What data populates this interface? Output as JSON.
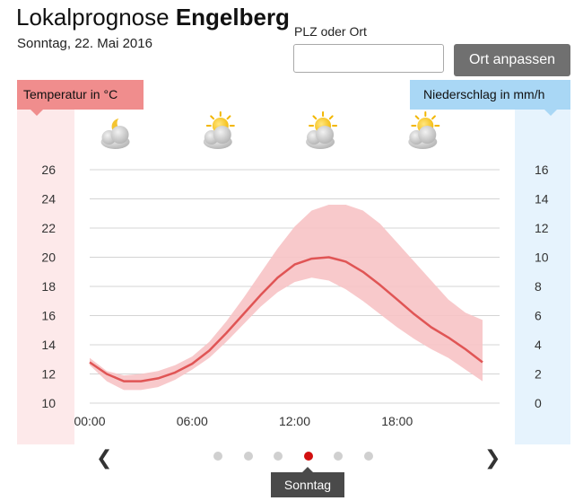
{
  "header": {
    "title_prefix": "Lokalprognose",
    "title_place": "Engelberg",
    "date": "Sonntag, 22. Mai 2016"
  },
  "search": {
    "label": "PLZ oder Ort",
    "value": "",
    "placeholder": "",
    "button_label": "Ort anpassen"
  },
  "weather_icons": [
    "moon-cloud-icon",
    "sun-cloud-icon",
    "sun-cloud-icon",
    "sun-cloud-icon"
  ],
  "colors": {
    "temperature": "#e05555",
    "temperature_band": "#f7c3c5",
    "temperature_column": "#fde9ea",
    "precipitation_column": "#e6f3fd",
    "active_dot": "#d20f0f"
  },
  "chart_data": {
    "type": "line",
    "left_axis_label": "Temperatur in °C",
    "right_axis_label": "Niederschlag in mm/h",
    "x_ticks": [
      "00:00",
      "06:00",
      "12:00",
      "18:00"
    ],
    "y_left_ticks": [
      10,
      12,
      14,
      16,
      18,
      20,
      22,
      24,
      26
    ],
    "y_right_ticks": [
      0,
      2,
      4,
      6,
      8,
      10,
      12,
      14,
      16
    ],
    "ylim_left": [
      10,
      26
    ],
    "ylim_right": [
      0,
      16
    ],
    "grid": true,
    "series": [
      {
        "kind": "line",
        "hours": [
          0,
          1,
          2,
          3,
          4,
          5,
          6,
          7,
          8,
          9,
          10,
          11,
          12,
          13,
          14,
          15,
          16,
          17,
          18,
          19,
          20,
          21,
          22,
          23
        ],
        "values": [
          12.8,
          12.0,
          11.5,
          11.5,
          11.7,
          12.1,
          12.7,
          13.6,
          14.8,
          16.1,
          17.4,
          18.6,
          19.5,
          19.9,
          20.0,
          19.7,
          19.0,
          18.1,
          17.1,
          16.1,
          15.2,
          14.5,
          13.7,
          12.8
        ]
      },
      {
        "kind": "range",
        "hours": [
          0,
          1,
          2,
          3,
          4,
          5,
          6,
          7,
          8,
          9,
          10,
          11,
          12,
          13,
          14,
          15,
          16,
          17,
          18,
          19,
          20,
          21,
          22,
          23
        ],
        "low": [
          12.6,
          11.5,
          10.9,
          10.9,
          11.1,
          11.6,
          12.3,
          13.1,
          14.2,
          15.4,
          16.6,
          17.6,
          18.3,
          18.6,
          18.4,
          17.8,
          17.0,
          16.1,
          15.2,
          14.4,
          13.7,
          13.1,
          12.3,
          11.5
        ],
        "high": [
          13.1,
          12.2,
          11.9,
          12.0,
          12.2,
          12.6,
          13.2,
          14.2,
          15.6,
          17.2,
          18.9,
          20.6,
          22.1,
          23.2,
          23.6,
          23.6,
          23.2,
          22.3,
          21.0,
          19.7,
          18.4,
          17.1,
          16.2,
          15.7
        ]
      }
    ]
  },
  "pager": {
    "dots": 6,
    "active_index": 3,
    "active_label": "Sonntag"
  }
}
